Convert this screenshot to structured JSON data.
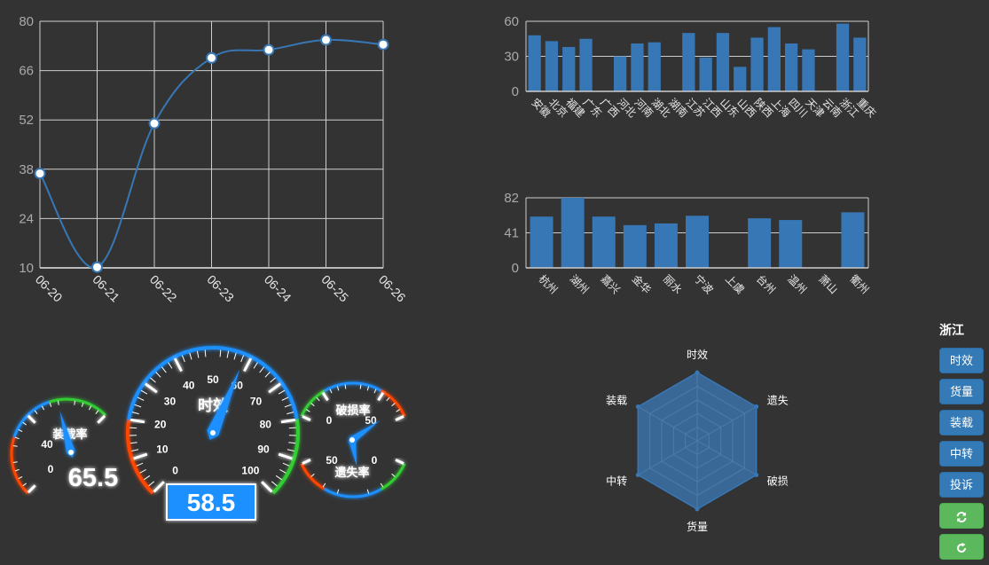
{
  "chart_data": [
    {
      "type": "line",
      "x": [
        "06-20",
        "06-21",
        "06-22",
        "06-23",
        "06-24",
        "06-25",
        "06-26"
      ],
      "values": [
        36.8,
        10.2,
        51.0,
        69.6,
        71.9,
        74.7,
        73.4
      ],
      "yticks": [
        10,
        24,
        38,
        52,
        66,
        80
      ],
      "ylim": [
        10,
        80
      ],
      "grid": true,
      "smooth": true,
      "color": "#3877b5"
    },
    {
      "type": "bar",
      "categories": [
        "安徽",
        "北京",
        "福建",
        "广东",
        "广西",
        "河北",
        "河南",
        "湖北",
        "湖南",
        "江苏",
        "江西",
        "山东",
        "山西",
        "陕西",
        "上海",
        "四川",
        "天津",
        "云南",
        "浙江",
        "重庆"
      ],
      "values": [
        48,
        43,
        38,
        45,
        0,
        30,
        41,
        42,
        0,
        50,
        29,
        50,
        21,
        46,
        55,
        41,
        36,
        0,
        58,
        46
      ],
      "yticks": [
        0,
        30,
        60
      ],
      "ylim": [
        0,
        60
      ],
      "color": "#3877b5"
    },
    {
      "type": "bar",
      "categories": [
        "杭州",
        "湖州",
        "嘉兴",
        "金华",
        "丽水",
        "宁波",
        "上虞",
        "台州",
        "温州",
        "萧山",
        "衢州"
      ],
      "values": [
        60,
        82,
        60,
        50,
        52,
        61,
        0,
        58,
        56,
        0,
        65
      ],
      "yticks": [
        0,
        41,
        82
      ],
      "ylim": [
        0,
        82
      ],
      "color": "#3877b5"
    },
    {
      "type": "radar",
      "indicators": [
        "时效",
        "遗失",
        "破损",
        "货量",
        "中转",
        "装载"
      ],
      "values": [
        1,
        1,
        1,
        1,
        1,
        1
      ],
      "color": "#3877b5"
    }
  ],
  "gauges": {
    "speed": {
      "name": "时效",
      "value": 58.5,
      "min": 0,
      "max": 100,
      "ticks": [
        "0",
        "10",
        "20",
        "30",
        "40",
        "50",
        "60",
        "70",
        "80",
        "90",
        "100"
      ]
    },
    "load": {
      "name": "装载率",
      "value": 65.5,
      "ticks": [
        "0",
        "40"
      ]
    },
    "damage": {
      "name": "破损率",
      "ticks": [
        "0",
        "50"
      ]
    },
    "lost": {
      "name": "遗失率",
      "ticks": [
        "50",
        "0"
      ]
    },
    "colors": {
      "low": "#ff4500",
      "mid": "#1e90ff",
      "high": "#32cd32"
    }
  },
  "sidebar": {
    "title": "浙江",
    "buttons": [
      "时效",
      "货量",
      "装载",
      "中转",
      "投诉"
    ]
  }
}
